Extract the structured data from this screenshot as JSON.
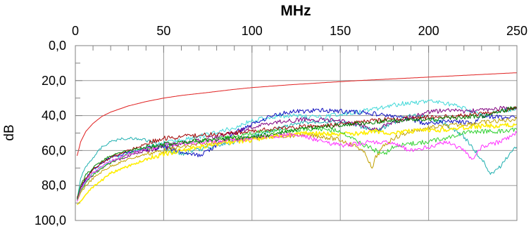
{
  "chart_data": {
    "type": "line",
    "xlabel": "MHz",
    "ylabel": "dB",
    "xlim": [
      0,
      250
    ],
    "ylim": [
      0,
      100
    ],
    "y_inverted": true,
    "x_axis_position": "top",
    "grid": true,
    "legend": "none",
    "x_ticks": [
      0,
      50,
      100,
      150,
      200,
      250
    ],
    "x_tick_labels": [
      "0",
      "50",
      "100",
      "150",
      "200",
      "250"
    ],
    "y_ticks": [
      0,
      20,
      40,
      60,
      80,
      100
    ],
    "y_tick_labels": [
      "0,0",
      "20,0",
      "40,0",
      "60,0",
      "80,0",
      "100,0"
    ],
    "series": [
      {
        "color": "#e02020",
        "x": [
          1,
          3,
          6,
          10,
          15,
          20,
          30,
          40,
          50,
          60,
          75,
          90,
          100,
          120,
          140,
          160,
          180,
          200,
          220,
          250
        ],
        "y": [
          63,
          55,
          49,
          44.5,
          40.5,
          38,
          34.5,
          32,
          30,
          28.5,
          26.8,
          25,
          24,
          22.5,
          21.2,
          20,
          19,
          18,
          17,
          15.5
        ]
      },
      {
        "color": "#20b0b0",
        "x": [
          1,
          3,
          6,
          10,
          15,
          20,
          25,
          30,
          35,
          40,
          45,
          50,
          60,
          75,
          90,
          100,
          110,
          120,
          130,
          140,
          150,
          160,
          170,
          180,
          190,
          200,
          210,
          220,
          230,
          235,
          240,
          245,
          250
        ],
        "y": [
          88,
          76,
          69,
          64,
          58,
          55,
          53.5,
          53,
          53.2,
          54,
          56,
          59,
          62,
          58,
          55,
          52,
          49,
          46,
          44,
          43,
          44,
          46,
          49,
          44,
          40,
          41,
          45,
          52,
          65,
          73,
          70,
          63,
          58
        ]
      },
      {
        "color": "#40d8d8",
        "x": [
          1,
          3,
          6,
          10,
          15,
          20,
          30,
          40,
          50,
          60,
          75,
          90,
          100,
          110,
          120,
          130,
          140,
          150,
          160,
          170,
          180,
          190,
          200,
          210,
          220,
          230,
          240,
          250
        ],
        "y": [
          87,
          82,
          77,
          73,
          69,
          66,
          62,
          58,
          56,
          54,
          51,
          47,
          43,
          41,
          40,
          40.5,
          41,
          39,
          38,
          36,
          34,
          32.5,
          32,
          33,
          36,
          40,
          38,
          36
        ]
      },
      {
        "color": "#1010c0",
        "x": [
          1,
          3,
          6,
          10,
          15,
          20,
          30,
          40,
          50,
          60,
          70,
          80,
          90,
          100,
          110,
          120,
          130,
          140,
          150,
          160,
          170,
          180,
          190,
          200,
          210,
          220,
          225,
          230,
          240,
          250
        ],
        "y": [
          89,
          82,
          76,
          71,
          67,
          64,
          61,
          59,
          58,
          61,
          63,
          57,
          50,
          45,
          40.5,
          38,
          37.5,
          37,
          37.5,
          38,
          39,
          40.5,
          42,
          45,
          43,
          44,
          45,
          40,
          41,
          41
        ]
      },
      {
        "color": "#800080",
        "x": [
          1,
          3,
          6,
          10,
          15,
          20,
          30,
          40,
          50,
          60,
          75,
          90,
          100,
          110,
          120,
          130,
          140,
          150,
          160,
          170,
          180,
          190,
          200,
          210,
          220,
          230,
          240,
          250
        ],
        "y": [
          88,
          83,
          78,
          74,
          70,
          67,
          63,
          60,
          58,
          56,
          53,
          50,
          47,
          44.5,
          43,
          42,
          42.5,
          43,
          45,
          48,
          44,
          41,
          38,
          37,
          37.5,
          37,
          36,
          35.5
        ]
      },
      {
        "color": "#a00000",
        "x": [
          1,
          3,
          6,
          10,
          15,
          20,
          30,
          40,
          50,
          60,
          75,
          90,
          100,
          110,
          120,
          130,
          140,
          150,
          160,
          170,
          180,
          190,
          200,
          210,
          220,
          230,
          240,
          250
        ],
        "y": [
          87,
          81,
          76,
          71,
          67,
          64,
          60,
          56,
          53,
          52,
          51,
          50,
          49,
          48,
          47,
          46.5,
          46,
          45,
          44,
          43,
          42,
          41.5,
          41,
          40.5,
          40,
          39,
          37.5,
          36
        ]
      },
      {
        "color": "#c0a000",
        "x": [
          1,
          3,
          6,
          10,
          15,
          20,
          30,
          40,
          50,
          60,
          75,
          90,
          100,
          110,
          120,
          130,
          140,
          150,
          160,
          165,
          168,
          170,
          175,
          180,
          190,
          200,
          210,
          220,
          230,
          240,
          250
        ],
        "y": [
          89,
          84,
          80,
          76,
          72,
          69,
          65,
          62,
          60,
          58,
          56,
          54,
          53,
          52,
          51.5,
          51,
          52,
          54,
          58,
          63,
          71,
          64,
          57,
          53,
          49,
          47,
          46,
          45,
          44,
          43,
          42
        ]
      },
      {
        "color": "#ffee00",
        "x": [
          1,
          2,
          4,
          6,
          10,
          15,
          20,
          30,
          40,
          50,
          60,
          75,
          90,
          100,
          110,
          120,
          130,
          140,
          150,
          160,
          170,
          180,
          190,
          200,
          210,
          220,
          230,
          240,
          250
        ],
        "y": [
          91,
          90,
          88,
          85,
          81,
          77,
          73,
          69,
          65,
          62,
          60,
          57,
          55,
          54,
          52,
          51,
          50,
          50.5,
          51,
          50,
          49,
          50,
          49,
          48.5,
          48,
          47,
          46,
          46,
          45
        ]
      },
      {
        "color": "#30d030",
        "x": [
          1,
          3,
          6,
          10,
          15,
          20,
          30,
          40,
          50,
          60,
          75,
          90,
          100,
          110,
          120,
          130,
          140,
          150,
          160,
          170,
          175,
          180,
          190,
          200,
          210,
          220,
          230,
          240,
          250
        ],
        "y": [
          88,
          83,
          78,
          74,
          70,
          67,
          62,
          59,
          57,
          56,
          54,
          52,
          50,
          49,
          48.5,
          48,
          47.5,
          49,
          55,
          60,
          62,
          58,
          56,
          55,
          53,
          50,
          49,
          49,
          48
        ]
      },
      {
        "color": "#ff30ff",
        "x": [
          1,
          3,
          6,
          10,
          15,
          20,
          30,
          40,
          50,
          60,
          75,
          90,
          100,
          110,
          120,
          130,
          140,
          150,
          160,
          170,
          180,
          190,
          200,
          210,
          220,
          225,
          230,
          240,
          250
        ],
        "y": [
          89,
          82,
          77,
          73,
          69,
          66,
          62,
          59,
          57,
          56,
          55,
          54,
          53,
          52,
          51,
          52,
          55,
          57,
          56,
          55,
          56,
          60,
          58,
          55,
          60,
          65,
          58,
          55,
          50
        ]
      },
      {
        "color": "#008000",
        "x": [
          1,
          3,
          6,
          10,
          15,
          20,
          30,
          40,
          50,
          60,
          75,
          90,
          100,
          110,
          120,
          130,
          140,
          150,
          160,
          170,
          180,
          190,
          200,
          210,
          220,
          230,
          240,
          250
        ],
        "y": [
          88,
          80,
          74,
          70,
          66,
          63,
          60,
          58,
          56.5,
          55,
          54,
          53,
          52,
          51,
          49,
          47.5,
          46.5,
          45.5,
          44.5,
          43.5,
          43,
          42.5,
          42,
          41.5,
          41,
          40.5,
          38,
          35
        ]
      }
    ]
  }
}
